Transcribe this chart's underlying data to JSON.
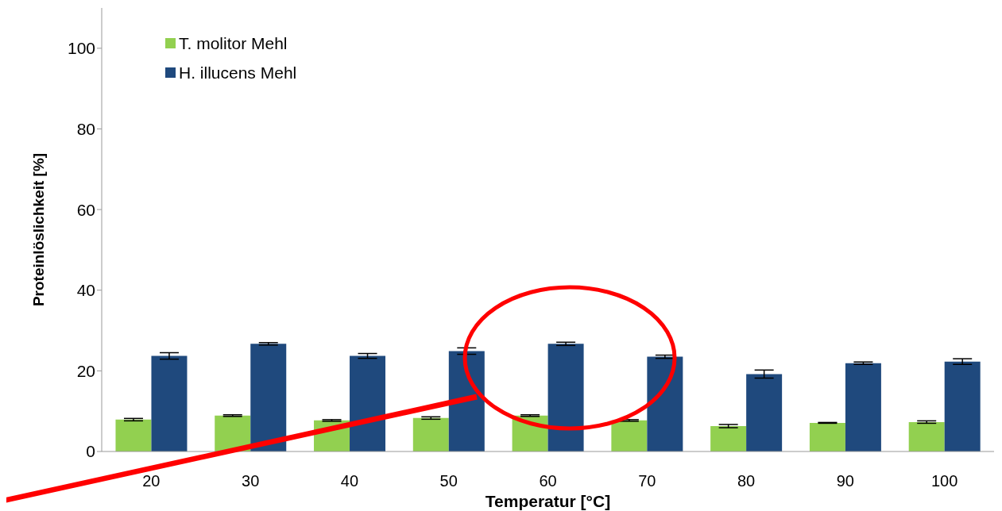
{
  "chart_data": {
    "type": "bar",
    "xlabel": "Temperatur [°C]",
    "ylabel": "Proteinlöslichkeit [%]",
    "categories": [
      "20",
      "30",
      "40",
      "50",
      "60",
      "70",
      "80",
      "90",
      "100"
    ],
    "series": [
      {
        "name": "T. molitor Mehl",
        "color": "#92d050",
        "values": [
          7.9,
          8.9,
          7.7,
          8.3,
          8.9,
          7.7,
          6.3,
          7.1,
          7.3
        ],
        "errors": [
          0.3,
          0.2,
          0.2,
          0.3,
          0.2,
          0.2,
          0.4,
          0.1,
          0.3
        ]
      },
      {
        "name": "H. illucens Mehl",
        "color": "#1f497d",
        "values": [
          23.7,
          26.7,
          23.7,
          24.9,
          26.7,
          23.5,
          19.2,
          21.9,
          22.3
        ],
        "errors": [
          0.8,
          0.3,
          0.6,
          0.8,
          0.4,
          0.4,
          1.0,
          0.3,
          0.7
        ]
      }
    ],
    "ylim": [
      0,
      110
    ],
    "yticks": [
      0,
      20,
      40,
      60,
      80,
      100
    ],
    "grid": false,
    "legend": "top left"
  }
}
